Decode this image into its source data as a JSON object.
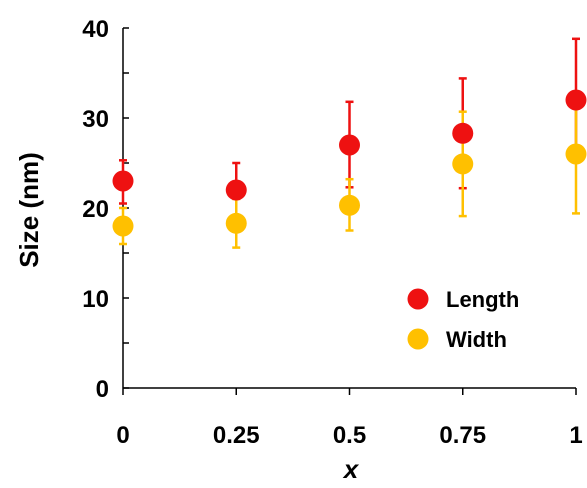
{
  "chart_data": {
    "type": "scatter",
    "xlabel": "x",
    "ylabel": "Size (nm)",
    "xlim": [
      0,
      1
    ],
    "ylim": [
      0,
      40
    ],
    "x_ticks": [
      "0",
      "0.25",
      "0.5",
      "0.75",
      "1"
    ],
    "y_ticks": [
      "0",
      "10",
      "20",
      "30",
      "40"
    ],
    "grid": false,
    "legend_position": "bottom-right",
    "series": [
      {
        "name": "Length",
        "color": "#ee1111",
        "points": [
          {
            "x": 0,
            "y": 23.0,
            "err_low": 20.5,
            "err_high": 25.3
          },
          {
            "x": 0.25,
            "y": 22.0,
            "err_low": 19.0,
            "err_high": 25.0
          },
          {
            "x": 0.5,
            "y": 27.0,
            "err_low": 22.3,
            "err_high": 31.8
          },
          {
            "x": 0.75,
            "y": 28.3,
            "err_low": 22.2,
            "err_high": 34.4
          },
          {
            "x": 1,
            "y": 32.0,
            "err_low": 25.2,
            "err_high": 38.8
          }
        ]
      },
      {
        "name": "Width",
        "color": "#ffc000",
        "points": [
          {
            "x": 0,
            "y": 18.0,
            "err_low": 16.0,
            "err_high": 20.0
          },
          {
            "x": 0.25,
            "y": 18.3,
            "err_low": 15.6,
            "err_high": 21.0
          },
          {
            "x": 0.5,
            "y": 20.3,
            "err_low": 17.5,
            "err_high": 23.2
          },
          {
            "x": 0.75,
            "y": 24.9,
            "err_low": 19.1,
            "err_high": 30.7
          },
          {
            "x": 1,
            "y": 26.0,
            "err_low": 19.4,
            "err_high": 32.6
          }
        ]
      }
    ]
  }
}
